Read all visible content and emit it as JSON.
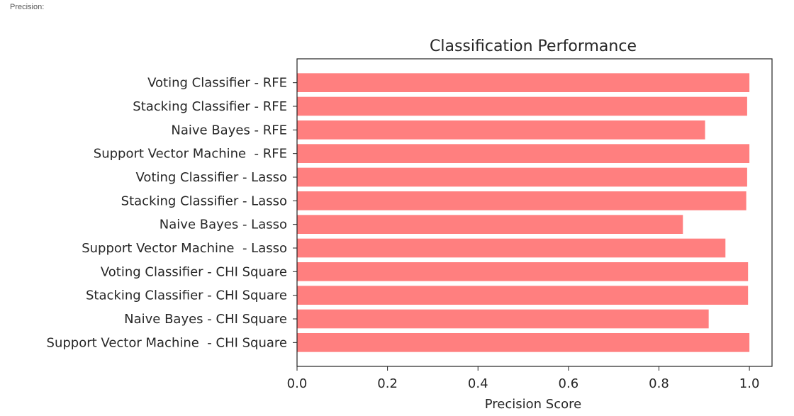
{
  "page": {
    "caption": "Precision:"
  },
  "chart_data": {
    "type": "bar",
    "orientation": "horizontal",
    "title": "Classification Performance",
    "xlabel": "Precision Score",
    "ylabel": "",
    "xlim": [
      0.0,
      1.05
    ],
    "xticks": [
      0.0,
      0.2,
      0.4,
      0.6,
      0.8,
      1.0
    ],
    "xtick_labels": [
      "0.0",
      "0.2",
      "0.4",
      "0.6",
      "0.8",
      "1.0"
    ],
    "grid": false,
    "bar_color": "#ff7f7f",
    "categories": [
      "Voting Classifier - RFE",
      "Stacking Classifier - RFE",
      "Naive Bayes - RFE",
      "Support Vector Machine  - RFE",
      "Voting Classifier - Lasso",
      "Stacking Classifier - Lasso",
      "Naive Bayes - Lasso",
      "Support Vector Machine  - Lasso",
      "Voting Classifier - CHI Square",
      "Stacking Classifier - CHI Square",
      "Naive Bayes - CHI Square",
      "Support Vector Machine  - CHI Square"
    ],
    "values": [
      1.0,
      0.995,
      0.902,
      1.0,
      0.995,
      0.993,
      0.853,
      0.947,
      0.997,
      0.997,
      0.91,
      1.0
    ]
  }
}
